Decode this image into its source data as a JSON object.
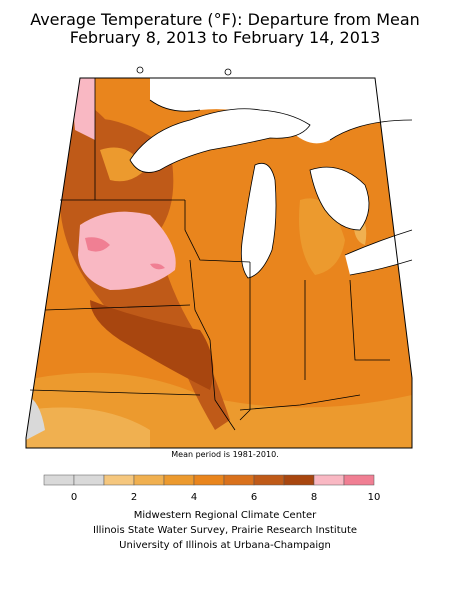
{
  "title": {
    "line1": "Average Temperature (°F): Departure from Mean",
    "line2": "February 8, 2013 to February 14, 2013"
  },
  "map": {
    "region": "Midwest United States",
    "water_color": "#ffffff",
    "land_outline_color": "#000000"
  },
  "note": "Mean period is 1981-2010.",
  "legend": {
    "colors": [
      "#d9d9d9",
      "#d9d9d9",
      "#f5c77e",
      "#f0b050",
      "#ec9a2e",
      "#e9851d",
      "#d9711c",
      "#bf5a18",
      "#a8460f",
      "#f9b8c3",
      "#f07f93"
    ],
    "tick_labels": [
      "0",
      "2",
      "4",
      "6",
      "8",
      "10"
    ]
  },
  "credits": {
    "line1": "Midwestern Regional Climate Center",
    "line2": "Illinois State Water Survey, Prairie Research Institute",
    "line3": "University of Illinois at Urbana-Champaign"
  }
}
